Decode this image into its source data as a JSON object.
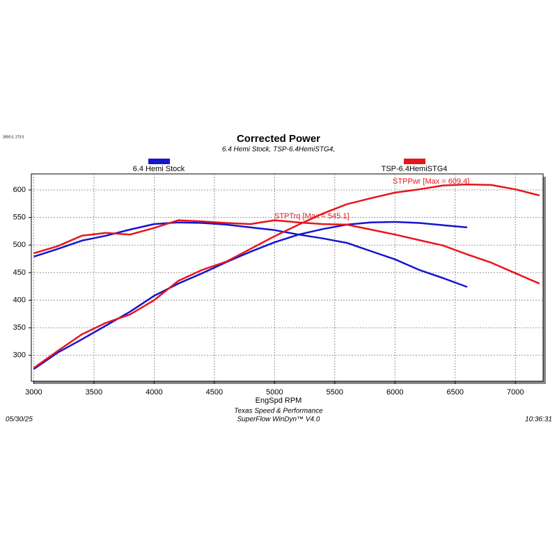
{
  "chart_data": {
    "type": "line",
    "title": "Corrected Power",
    "subtitle": "6.4 Hemi Stock, TSP-6.4HemiSTG4,",
    "cursor_label": "3000.0, 273.5",
    "x_label": "EngSpd RPM",
    "footer_lines": [
      "Texas Speed & Performance",
      "SuperFlow WinDyn™ V4.0"
    ],
    "date": "05/30/25",
    "time": "10:36:31",
    "annotations": [
      {
        "text": "STPPwr [Max = 609.4]",
        "color": "#e8141b"
      },
      {
        "text": "STPTrq [Max = 545.1]",
        "color": "#e8141b"
      }
    ],
    "x": [
      3000,
      3200,
      3400,
      3600,
      3800,
      4000,
      4200,
      4400,
      4600,
      4800,
      5000,
      5200,
      5400,
      5600,
      5800,
      6000,
      6200,
      6400,
      6600,
      6800,
      7000,
      7200
    ],
    "series": [
      {
        "name": "6.4 Hemi Stock",
        "color": "#1414d2",
        "power": [
          275,
          305,
          329,
          354,
          379,
          408,
          430,
          449,
          469,
          488,
          505,
          519,
          529,
          537,
          541,
          542,
          540,
          536,
          532,
          null,
          null,
          null
        ],
        "torque": [
          479,
          493,
          508,
          517,
          528,
          538,
          541,
          540,
          537,
          532,
          527,
          519,
          512,
          504,
          489,
          474,
          455,
          440,
          424,
          null,
          null,
          null
        ]
      },
      {
        "name": "TSP-6.4HemiSTG4",
        "color": "#e8141b",
        "power": [
          277,
          308,
          338,
          359,
          374,
          400,
          435,
          455,
          470,
          493,
          516,
          537,
          557,
          574,
          585,
          595,
          601,
          608,
          610,
          609,
          601,
          590
        ],
        "torque": [
          485,
          498,
          517,
          522,
          519,
          531,
          545,
          543,
          540,
          538,
          545,
          541,
          538,
          537,
          528,
          519,
          509,
          499,
          483,
          468,
          449,
          430
        ]
      }
    ],
    "xlim": [
      2980,
      7230
    ],
    "ylim": [
      253,
      629
    ],
    "xticks": [
      3000,
      3500,
      4000,
      4500,
      5000,
      5500,
      6000,
      6500,
      7000
    ],
    "yticks": [
      300,
      350,
      400,
      450,
      500,
      550,
      600
    ],
    "grid": true
  }
}
